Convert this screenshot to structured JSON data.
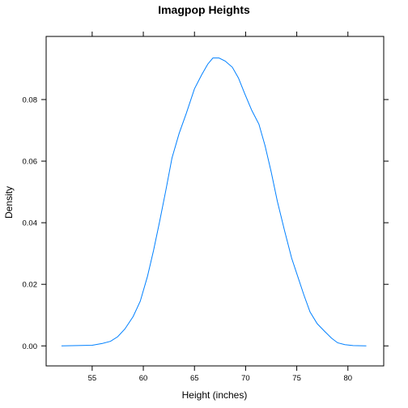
{
  "chart_data": {
    "type": "line",
    "title": "Imagpop Heights",
    "xlabel": "Height (inches)",
    "ylabel": "Density",
    "xlim": [
      50.5,
      83.5
    ],
    "ylim": [
      -0.0065,
      0.1005
    ],
    "x_ticks": [
      55,
      60,
      65,
      70,
      75,
      80
    ],
    "y_ticks": [
      0.0,
      0.02,
      0.04,
      0.06,
      0.08
    ],
    "x_tick_labels": [
      "55",
      "60",
      "65",
      "70",
      "75",
      "80"
    ],
    "y_tick_labels": [
      "0.00",
      "0.02",
      "0.04",
      "0.06",
      "0.08"
    ],
    "grid": false,
    "line_color": "#0080ff",
    "series": [
      {
        "x": [
          52.0,
          53.5,
          55.0,
          56.0,
          56.8,
          57.5,
          58.2,
          59.0,
          59.7,
          60.4,
          61.0,
          61.6,
          62.2,
          62.8,
          63.5,
          64.2,
          65.0,
          65.7,
          66.3,
          66.8,
          67.4,
          68.0,
          68.7,
          69.3,
          69.9,
          70.6,
          71.3,
          71.9,
          72.5,
          73.1,
          73.8,
          74.5,
          75.1,
          75.7,
          76.3,
          77.0,
          77.7,
          78.4,
          79.0,
          79.7,
          80.5,
          81.8
        ],
        "y": [
          0.0,
          0.0001,
          0.0002,
          0.0008,
          0.0015,
          0.003,
          0.0055,
          0.0095,
          0.0145,
          0.0225,
          0.031,
          0.0405,
          0.0505,
          0.061,
          0.069,
          0.0755,
          0.0835,
          0.088,
          0.0915,
          0.0935,
          0.0935,
          0.0925,
          0.0905,
          0.087,
          0.082,
          0.0765,
          0.072,
          0.065,
          0.0565,
          0.047,
          0.0375,
          0.0285,
          0.0225,
          0.0165,
          0.011,
          0.0072,
          0.0048,
          0.0025,
          0.001,
          0.0004,
          0.0001,
          0.0
        ]
      }
    ]
  }
}
